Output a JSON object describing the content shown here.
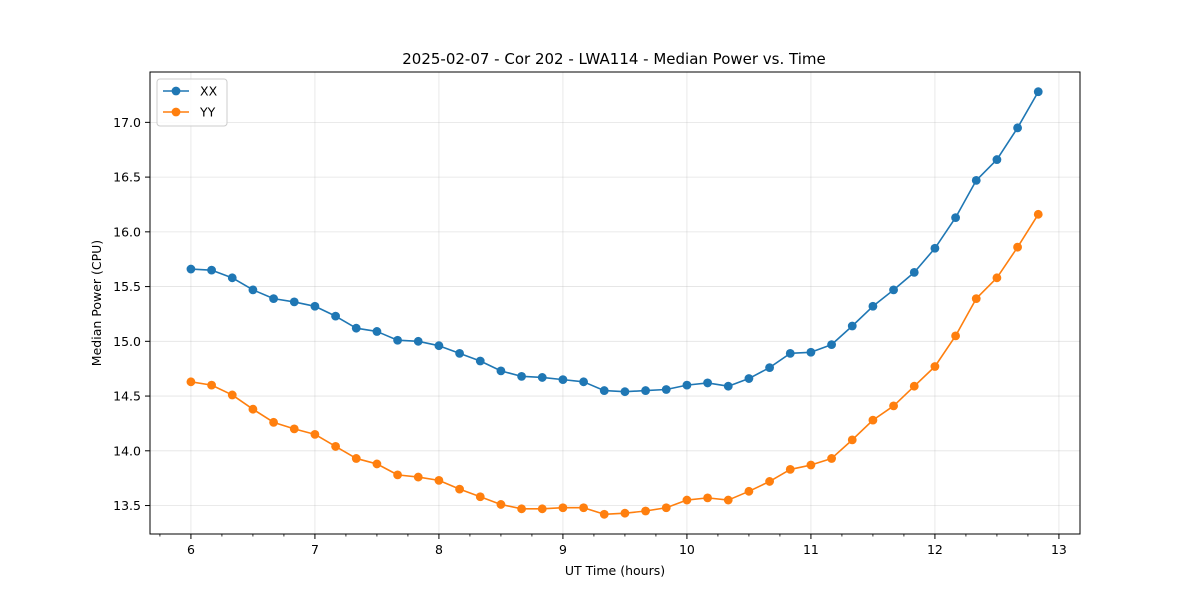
{
  "chart_data": {
    "type": "line",
    "title": "2025-02-07 - Cor 202 - LWA114 - Median Power vs. Time",
    "xlabel": "UT Time (hours)",
    "ylabel": "Median Power (CPU)",
    "xlim": [
      5.67,
      13.17
    ],
    "ylim": [
      13.24,
      17.46
    ],
    "xticks": [
      6,
      7,
      8,
      9,
      10,
      11,
      12,
      13
    ],
    "yticks": [
      13.5,
      14.0,
      14.5,
      15.0,
      15.5,
      16.0,
      16.5,
      17.0
    ],
    "grid": true,
    "legend_position": "upper-left",
    "x": [
      6.0,
      6.1667,
      6.3333,
      6.5,
      6.6667,
      6.8333,
      7.0,
      7.1667,
      7.3333,
      7.5,
      7.6667,
      7.8333,
      8.0,
      8.1667,
      8.3333,
      8.5,
      8.6667,
      8.8333,
      9.0,
      9.1667,
      9.3333,
      9.5,
      9.6667,
      9.8333,
      10.0,
      10.1667,
      10.3333,
      10.5,
      10.6667,
      10.8333,
      11.0,
      11.1667,
      11.3333,
      11.5,
      11.6667,
      11.8333,
      12.0,
      12.1667,
      12.3333,
      12.5,
      12.6667,
      12.8333
    ],
    "series": [
      {
        "name": "XX",
        "color": "#1f77b4",
        "values": [
          15.66,
          15.65,
          15.58,
          15.47,
          15.39,
          15.36,
          15.32,
          15.23,
          15.12,
          15.09,
          15.01,
          15.0,
          14.96,
          14.89,
          14.82,
          14.73,
          14.68,
          14.67,
          14.65,
          14.63,
          14.55,
          14.54,
          14.55,
          14.56,
          14.6,
          14.62,
          14.59,
          14.66,
          14.76,
          14.89,
          14.9,
          14.97,
          15.14,
          15.32,
          15.47,
          15.63,
          15.85,
          16.13,
          16.47,
          16.66,
          16.95,
          17.28
        ]
      },
      {
        "name": "YY",
        "color": "#ff7f0e",
        "values": [
          14.63,
          14.6,
          14.51,
          14.38,
          14.26,
          14.2,
          14.15,
          14.04,
          13.93,
          13.88,
          13.78,
          13.76,
          13.73,
          13.65,
          13.58,
          13.51,
          13.47,
          13.47,
          13.48,
          13.48,
          13.42,
          13.43,
          13.45,
          13.48,
          13.55,
          13.57,
          13.55,
          13.63,
          13.72,
          13.83,
          13.87,
          13.93,
          14.1,
          14.28,
          14.41,
          14.59,
          14.77,
          15.05,
          15.39,
          15.58,
          15.86,
          16.16
        ]
      }
    ]
  }
}
